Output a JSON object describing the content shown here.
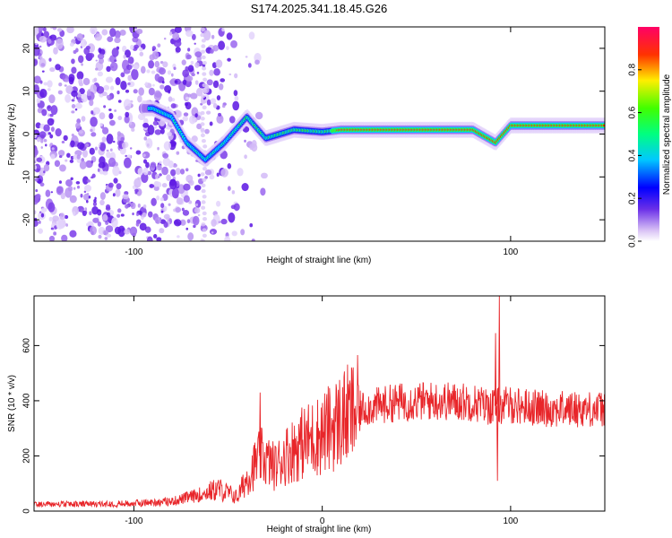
{
  "title": "S174.2025.341.18.45.G26",
  "chart_data": [
    {
      "type": "heatmap",
      "xlabel": "Height of straight line (km)",
      "ylabel": "Frequency (Hz)",
      "xlim": [
        -153,
        150
      ],
      "ylim": [
        -25,
        25
      ],
      "x_ticks": [
        -100,
        100
      ],
      "y_ticks": [
        -20,
        -10,
        0,
        10,
        20
      ],
      "colorbar": {
        "label": "Normalized spectral amplitude",
        "range": [
          0,
          1
        ],
        "ticks": [
          "0.0",
          "0.2",
          "0.4",
          "0.6",
          "0.8"
        ],
        "tick_values": [
          0,
          0.2,
          0.4,
          0.6,
          0.8
        ]
      },
      "ridge": [
        {
          "x": -90,
          "f": 6
        },
        {
          "x": -80,
          "f": 4
        },
        {
          "x": -72,
          "f": -2
        },
        {
          "x": -62,
          "f": -6
        },
        {
          "x": -52,
          "f": -2
        },
        {
          "x": -40,
          "f": 4
        },
        {
          "x": -30,
          "f": -1
        },
        {
          "x": -15,
          "f": 1
        },
        {
          "x": 0,
          "f": 0.5
        },
        {
          "x": 10,
          "f": 1
        },
        {
          "x": 40,
          "f": 1
        },
        {
          "x": 80,
          "f": 1
        },
        {
          "x": 92,
          "f": -2
        },
        {
          "x": 100,
          "f": 2
        },
        {
          "x": 140,
          "f": 2
        }
      ]
    },
    {
      "type": "line",
      "xlabel": "Height of straight line (km)",
      "ylabel": "SNR (10 * v/v)",
      "xlim": [
        -153,
        150
      ],
      "ylim": [
        0,
        780
      ],
      "x_ticks": [
        -100,
        0,
        100
      ],
      "y_ticks": [
        0,
        200,
        400,
        600
      ],
      "color": "#e8262a",
      "series_envelope": [
        {
          "x": -153,
          "y": 25
        },
        {
          "x": -120,
          "y": 25
        },
        {
          "x": -100,
          "y": 28
        },
        {
          "x": -80,
          "y": 35
        },
        {
          "x": -65,
          "y": 60
        },
        {
          "x": -55,
          "y": 80
        },
        {
          "x": -45,
          "y": 50
        },
        {
          "x": -40,
          "y": 120
        },
        {
          "x": -33,
          "y": 200
        },
        {
          "x": -25,
          "y": 160
        },
        {
          "x": -20,
          "y": 200
        },
        {
          "x": -10,
          "y": 250
        },
        {
          "x": 0,
          "y": 280
        },
        {
          "x": 10,
          "y": 330
        },
        {
          "x": 20,
          "y": 370
        },
        {
          "x": 40,
          "y": 395
        },
        {
          "x": 60,
          "y": 400
        },
        {
          "x": 80,
          "y": 395
        },
        {
          "x": 88,
          "y": 380
        },
        {
          "x": 100,
          "y": 385
        },
        {
          "x": 120,
          "y": 370
        },
        {
          "x": 150,
          "y": 370
        }
      ],
      "spikes": [
        {
          "x": -33,
          "y": 430
        },
        {
          "x": 92,
          "y": 645
        },
        {
          "x": 94,
          "y": 780
        },
        {
          "x": 93,
          "y": 110
        }
      ]
    }
  ]
}
